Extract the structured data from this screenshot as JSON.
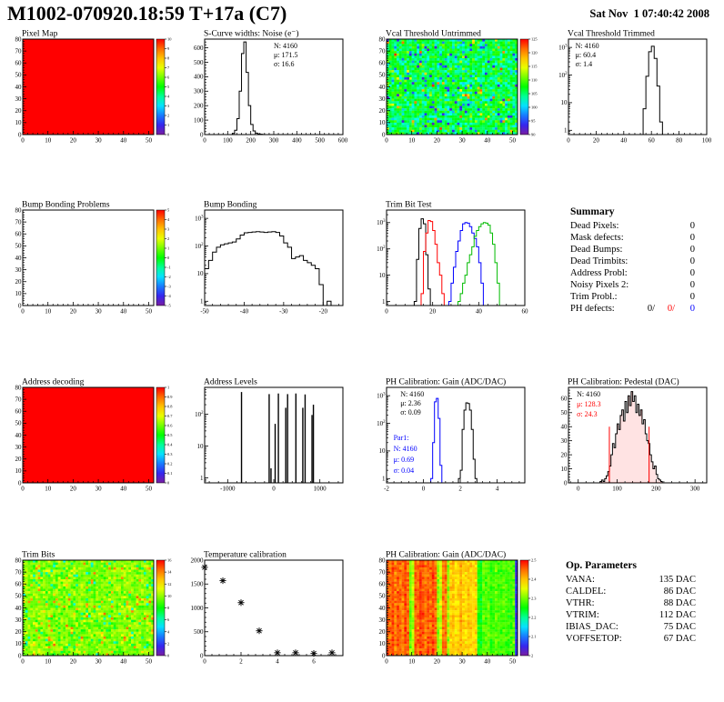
{
  "header": {
    "title": "M1002-070920.18:59 T+17a (C7)",
    "date": "Sat Nov  1 07:40:42 2008"
  },
  "summary": {
    "title": "Summary",
    "rows": [
      {
        "label": "Dead Pixels:",
        "value": "0"
      },
      {
        "label": "Mask defects:",
        "value": "0"
      },
      {
        "label": "Dead Bumps:",
        "value": "0"
      },
      {
        "label": "Dead Trimbits:",
        "value": "0"
      },
      {
        "label": "Address Probl:",
        "value": "0"
      },
      {
        "label": "Noisy Pixels 2:",
        "value": "0"
      },
      {
        "label": "Trim Probl.:",
        "value": "0"
      },
      {
        "label": "PH defects:",
        "parts": [
          {
            "text": "0/",
            "color": "#000000"
          },
          {
            "text": "0/",
            "color": "#ff0000"
          },
          {
            "text": "0",
            "color": "#0000ff"
          }
        ]
      }
    ]
  },
  "op_parameters": {
    "title": "Op. Parameters",
    "rows": [
      {
        "label": "VANA:",
        "value": "135 DAC"
      },
      {
        "label": "CALDEL:",
        "value": "86 DAC"
      },
      {
        "label": "VTHR:",
        "value": "88 DAC"
      },
      {
        "label": "VTRIM:",
        "value": "112 DAC"
      },
      {
        "label": "IBIAS_DAC:",
        "value": "75 DAC"
      },
      {
        "label": "VOFFSETOP:",
        "value": "67 DAC"
      }
    ]
  },
  "chart_data": [
    {
      "id": "pixel_map",
      "type": "heatmap",
      "fill": "uniform",
      "value": 10,
      "title": "Pixel Map",
      "x": {
        "min": 0,
        "max": 52,
        "ticks": [
          0,
          10,
          20,
          30,
          40,
          50
        ]
      },
      "y": {
        "min": 0,
        "max": 80,
        "ticks": [
          0,
          10,
          20,
          30,
          40,
          50,
          60,
          70,
          80
        ]
      },
      "z": {
        "min": 0,
        "max": 10,
        "ticks": [
          0,
          1,
          2,
          3,
          4,
          5,
          6,
          7,
          8,
          9,
          10
        ]
      }
    },
    {
      "id": "scurve_noise",
      "type": "histogram",
      "yscale": "linear",
      "title": "S-Curve widths: Noise (e⁻)",
      "x": {
        "min": 0,
        "max": 600,
        "ticks": [
          0,
          100,
          200,
          300,
          400,
          500,
          600
        ]
      },
      "y": {
        "min": 0,
        "max": 660,
        "ticks": [
          0,
          100,
          200,
          300,
          400,
          500,
          600
        ]
      },
      "series": [
        {
          "name": "noise",
          "color": "#000000",
          "x0": 120,
          "bw": 10,
          "counts": [
            8,
            30,
            110,
            300,
            560,
            640,
            430,
            200,
            70,
            25,
            10,
            5,
            2,
            1
          ]
        }
      ],
      "stats": [
        {
          "text": "N: 4160",
          "color": "#000000",
          "fx": 0.5,
          "dy": 10
        },
        {
          "text": "μ: 171.5",
          "color": "#000000",
          "fx": 0.5,
          "dy": 20
        },
        {
          "text": "σ: 16.6",
          "color": "#000000",
          "fx": 0.5,
          "dy": 30
        }
      ]
    },
    {
      "id": "vcal_untrimmed",
      "type": "heatmap",
      "fill": "noise",
      "title": "Vcal Threshold Untrimmed",
      "noise": {
        "mean": 106,
        "sd": 3,
        "pLow": 0.06,
        "low": [
          92,
          100
        ],
        "pHigh": 0.03,
        "high": [
          112,
          124
        ],
        "seed": 7
      },
      "x": {
        "min": 0,
        "max": 52,
        "ticks": [
          0,
          10,
          20,
          30,
          40,
          50
        ]
      },
      "y": {
        "min": 0,
        "max": 80,
        "ticks": [
          0,
          10,
          20,
          30,
          40,
          50,
          60,
          70,
          80
        ]
      },
      "z": {
        "min": 90,
        "max": 125,
        "ticks": [
          90,
          95,
          100,
          105,
          110,
          115,
          120,
          125
        ]
      }
    },
    {
      "id": "vcal_trimmed",
      "type": "histogram",
      "yscale": "log",
      "title": "Vcal Threshold Trimmed",
      "x": {
        "min": 0,
        "max": 100,
        "ticks": [
          0,
          20,
          40,
          60,
          80,
          100
        ]
      },
      "y": {
        "min": 0.7,
        "max": 2000,
        "ticks": [
          1,
          10,
          100,
          1000
        ]
      },
      "series": [
        {
          "name": "vcal",
          "color": "#000000",
          "x0": 54,
          "bw": 2,
          "counts": [
            6,
            90,
            700,
            1100,
            400,
            40,
            2
          ]
        }
      ],
      "stats": [
        {
          "text": "N: 4160",
          "color": "#000000",
          "fx": 0.05,
          "dy": 10
        },
        {
          "text": "μ: 60.4",
          "color": "#000000",
          "fx": 0.05,
          "dy": 20
        },
        {
          "text": "σ:  1.4",
          "color": "#000000",
          "fx": 0.05,
          "dy": 30
        }
      ]
    },
    {
      "id": "bump_problems",
      "type": "heatmap",
      "fill": "empty",
      "title": "Bump Bonding Problems",
      "x": {
        "min": 0,
        "max": 52,
        "ticks": [
          0,
          10,
          20,
          30,
          40,
          50
        ]
      },
      "y": {
        "min": 0,
        "max": 80,
        "ticks": [
          0,
          10,
          20,
          30,
          40,
          50,
          60,
          70,
          80
        ]
      },
      "z": {
        "min": -5,
        "max": 5,
        "ticks": [
          -5,
          -4,
          -3,
          -2,
          -1,
          0,
          1,
          2,
          3,
          4,
          5
        ]
      }
    },
    {
      "id": "bump_bonding",
      "type": "histogram",
      "yscale": "log",
      "title": "Bump Bonding",
      "x": {
        "min": -50,
        "max": -15,
        "ticks": [
          -50,
          -40,
          -30,
          -20
        ]
      },
      "y": {
        "min": 0.7,
        "max": 2000,
        "ticks": [
          1,
          10,
          100,
          1000
        ]
      },
      "series": [
        {
          "name": "bump",
          "color": "#000000",
          "x0": -50,
          "bw": 1,
          "counts": [
            15,
            30,
            60,
            90,
            110,
            120,
            130,
            140,
            180,
            250,
            300,
            310,
            320,
            330,
            320,
            310,
            320,
            330,
            310,
            230,
            130,
            90,
            35,
            40,
            45,
            30,
            25,
            20,
            15,
            4,
            0,
            1
          ]
        }
      ]
    },
    {
      "id": "trim_bit_test",
      "type": "histogram",
      "yscale": "log",
      "title": "Trim Bit Test",
      "x": {
        "min": 0,
        "max": 60,
        "ticks": [
          0,
          20,
          40,
          60
        ]
      },
      "y": {
        "min": 0.7,
        "max": 3000,
        "ticks": [
          1,
          10,
          100,
          1000
        ]
      },
      "series": [
        {
          "name": "bit0",
          "color": "#000000",
          "x0": 12,
          "bw": 1,
          "counts": [
            1,
            40,
            600,
            1400,
            900,
            60,
            3
          ]
        },
        {
          "name": "bit1",
          "color": "#ff0000",
          "x0": 15,
          "bw": 1,
          "counts": [
            2,
            80,
            400,
            1200,
            1100,
            500,
            150,
            30,
            10,
            2
          ]
        },
        {
          "name": "bit2",
          "color": "#0000ff",
          "x0": 27,
          "bw": 1,
          "counts": [
            1,
            5,
            20,
            80,
            200,
            500,
            900,
            1000,
            950,
            700,
            400,
            250,
            120,
            30,
            5
          ]
        },
        {
          "name": "bit3",
          "color": "#00bb00",
          "x0": 31,
          "bw": 1,
          "counts": [
            1,
            2,
            5,
            10,
            30,
            60,
            120,
            300,
            500,
            700,
            900,
            1000,
            950,
            800,
            400,
            150,
            30,
            5
          ]
        }
      ]
    },
    {
      "id": "address_decoding",
      "type": "heatmap",
      "fill": "uniform",
      "value": 1,
      "title": "Address decoding",
      "x": {
        "min": 0,
        "max": 52,
        "ticks": [
          0,
          10,
          20,
          30,
          40,
          50
        ]
      },
      "y": {
        "min": 0,
        "max": 80,
        "ticks": [
          0,
          10,
          20,
          30,
          40,
          50,
          60,
          70,
          80
        ]
      },
      "z": {
        "min": 0,
        "max": 1,
        "ticks": [
          0,
          0.1,
          0.2,
          0.3,
          0.4,
          0.5,
          0.6,
          0.7,
          0.8,
          0.9,
          1
        ]
      }
    },
    {
      "id": "address_levels",
      "type": "spikes",
      "yscale": "log",
      "title": "Address Levels",
      "x": {
        "min": -1500,
        "max": 1500,
        "ticks": [
          -1000,
          0,
          1000
        ]
      },
      "y": {
        "min": 0.7,
        "max": 700,
        "ticks": [
          1,
          10,
          100
        ]
      },
      "spikes": [
        [
          -700,
          500
        ],
        [
          -100,
          430
        ],
        [
          -60,
          2
        ],
        [
          30,
          50
        ],
        [
          100,
          450
        ],
        [
          260,
          160
        ],
        [
          300,
          430
        ],
        [
          480,
          450
        ],
        [
          630,
          160
        ],
        [
          680,
          420
        ],
        [
          830,
          95
        ],
        [
          860,
          200
        ]
      ]
    },
    {
      "id": "ph_gain_hist",
      "type": "histogram",
      "yscale": "log",
      "title": "PH Calibration: Gain (ADC/DAC)",
      "x": {
        "min": -2,
        "max": 5.5,
        "ticks": [
          -2,
          0,
          2,
          4
        ]
      },
      "y": {
        "min": 0.7,
        "max": 2000,
        "ticks": [
          1,
          10,
          100,
          1000
        ]
      },
      "series": [
        {
          "name": "par1",
          "color": "#0000ff",
          "x0": 0.4,
          "bw": 0.1,
          "counts": [
            1,
            20,
            600,
            800,
            150,
            3
          ]
        },
        {
          "name": "gain",
          "color": "#000000",
          "x0": 1.9,
          "bw": 0.1,
          "counts": [
            1,
            2,
            60,
            300,
            550,
            520,
            300,
            60,
            5,
            1
          ]
        }
      ],
      "stats": [
        {
          "text": "N: 4160",
          "color": "#000000",
          "fx": 0.1,
          "dy": 10
        },
        {
          "text": "μ: 2.36",
          "color": "#000000",
          "fx": 0.1,
          "dy": 20
        },
        {
          "text": "σ: 0.09",
          "color": "#000000",
          "fx": 0.1,
          "dy": 30
        },
        {
          "text": "Par1:",
          "color": "#0000ff",
          "fx": 0.05,
          "dy": 58
        },
        {
          "text": "N: 4160",
          "color": "#0000ff",
          "fx": 0.05,
          "dy": 70
        },
        {
          "text": "μ: 0.69",
          "color": "#0000ff",
          "fx": 0.05,
          "dy": 82
        },
        {
          "text": "σ: 0.04",
          "color": "#0000ff",
          "fx": 0.05,
          "dy": 94
        }
      ]
    },
    {
      "id": "ph_pedestal",
      "type": "histogram",
      "yscale": "linear",
      "title": "PH Calibration: Pedestal (DAC)",
      "x": {
        "min": -25,
        "max": 330,
        "ticks": [
          0,
          100,
          200,
          300
        ]
      },
      "y": {
        "min": 0,
        "max": 68,
        "ticks": [
          0,
          10,
          20,
          30,
          40,
          50,
          60
        ]
      },
      "series": [
        {
          "name": "pedestal",
          "color": "#000000",
          "x0": 56,
          "bw": 4,
          "fill": "red-dots",
          "counts": [
            1,
            2,
            1,
            3,
            5,
            8,
            12,
            20,
            28,
            25,
            35,
            42,
            38,
            48,
            52,
            44,
            58,
            50,
            62,
            55,
            65,
            58,
            62,
            50,
            56,
            48,
            52,
            42,
            45,
            35,
            30,
            28,
            20,
            15,
            10,
            12,
            6,
            3,
            2,
            1
          ]
        }
      ],
      "vlines": [
        {
          "x": 80,
          "h": 40,
          "color": "#ff0000"
        },
        {
          "x": 182,
          "h": 40,
          "color": "#ff0000"
        }
      ],
      "stats": [
        {
          "text": "N: 4160",
          "color": "#000000",
          "fx": 0.06,
          "dy": 10
        },
        {
          "text": "μ: 128.3",
          "color": "#ff0000",
          "fx": 0.06,
          "dy": 21
        },
        {
          "text": "σ: 24.3",
          "color": "#ff0000",
          "fx": 0.06,
          "dy": 32
        }
      ]
    },
    {
      "id": "trim_bits",
      "type": "heatmap",
      "fill": "noise",
      "title": "Trim Bits",
      "noise": {
        "mean": 9.8,
        "sd": 0.9,
        "pLow": 0.05,
        "low": [
          5.5,
          7.5
        ],
        "pHigh": 0.05,
        "high": [
          12,
          14.5
        ],
        "seed": 21
      },
      "x": {
        "min": 0,
        "max": 52,
        "ticks": [
          0,
          10,
          20,
          30,
          40,
          50
        ]
      },
      "y": {
        "min": 0,
        "max": 80,
        "ticks": [
          0,
          10,
          20,
          30,
          40,
          50,
          60,
          70,
          80
        ]
      },
      "z": {
        "min": 0,
        "max": 16,
        "ticks": [
          0,
          2,
          4,
          6,
          8,
          10,
          12,
          14,
          16
        ]
      }
    },
    {
      "id": "temp_calib",
      "type": "scatter",
      "title": "Temperature calibration",
      "x": {
        "min": 0,
        "max": 7.6,
        "ticks": [
          0,
          2,
          4,
          6
        ]
      },
      "y": {
        "min": 0,
        "max": 2000,
        "ticks": [
          0,
          500,
          1000,
          1500,
          2000
        ]
      },
      "points": [
        [
          0,
          1850
        ],
        [
          1,
          1570
        ],
        [
          2,
          1110
        ],
        [
          3,
          520
        ],
        [
          4,
          60
        ],
        [
          5,
          60
        ],
        [
          6,
          45
        ],
        [
          7,
          60
        ]
      ]
    },
    {
      "id": "ph_gain_map",
      "type": "heatmap",
      "fill": "columns",
      "title": "PH Calibration: Gain (ADC/DAC)",
      "colNoiseSd": 0.018,
      "seed": 5,
      "colValues": [
        2.46,
        2.45,
        2.47,
        2.44,
        2.46,
        2.45,
        2.44,
        2.47,
        2.45,
        2.3,
        2.33,
        2.46,
        2.45,
        2.47,
        2.46,
        2.44,
        2.46,
        2.45,
        2.47,
        2.45,
        2.31,
        2.34,
        2.44,
        2.45,
        2.31,
        2.39,
        2.4,
        2.38,
        2.39,
        2.41,
        2.39,
        2.38,
        2.4,
        2.39,
        2.38,
        2.39,
        2.26,
        2.25,
        2.29,
        2.28,
        2.29,
        2.27,
        2.28,
        2.29,
        2.28,
        2.27,
        2.29,
        2.28,
        2.27,
        2.28,
        2.29,
        2.06
      ],
      "x": {
        "min": 0,
        "max": 52,
        "ticks": [
          0,
          10,
          20,
          30,
          40,
          50
        ]
      },
      "y": {
        "min": 0,
        "max": 80,
        "ticks": [
          0,
          10,
          20,
          30,
          40,
          50,
          60,
          70,
          80
        ]
      },
      "z": {
        "min": 2,
        "max": 2.5,
        "ticks": [
          2,
          2.1,
          2.2,
          2.3,
          2.4,
          2.5
        ]
      }
    }
  ]
}
